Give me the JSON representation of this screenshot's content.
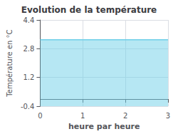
{
  "chart_data": {
    "type": "area",
    "title": "Evolution de la température",
    "xlabel": "heure par heure",
    "ylabel": "Température en °C",
    "x": [
      0,
      1,
      2,
      3
    ],
    "values": [
      3.3,
      3.3,
      3.3,
      3.3
    ],
    "color": "#6ecfe8",
    "xlim": [
      0,
      3
    ],
    "ylim": [
      -0.4,
      4.4
    ],
    "xticks": [
      0,
      1,
      2,
      3
    ],
    "yticks": [
      -0.4,
      1.2,
      2.8,
      4.4
    ],
    "grid": true
  }
}
